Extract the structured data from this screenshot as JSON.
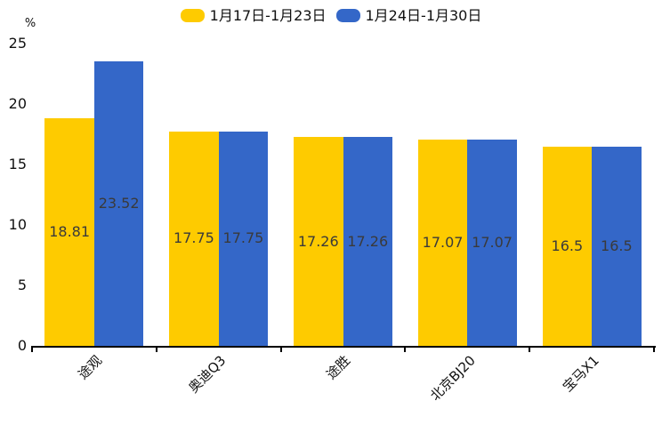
{
  "chart_data": {
    "type": "bar",
    "title": "",
    "unit": "%",
    "categories": [
      "途观",
      "奥迪Q3",
      "途胜",
      "北京BJ20",
      "宝马X1"
    ],
    "series": [
      {
        "name": "1月17日-1月23日",
        "color": "#FECB00",
        "values": [
          18.81,
          17.75,
          17.26,
          17.07,
          16.5
        ]
      },
      {
        "name": "1月24日-1月30日",
        "color": "#3467C8",
        "values": [
          23.52,
          17.75,
          17.26,
          17.07,
          16.5
        ]
      }
    ],
    "value_labels": [
      [
        "18.81",
        "17.75",
        "17.26",
        "17.07",
        "16.5"
      ],
      [
        "23.52",
        "17.75",
        "17.26",
        "17.07",
        "16.5"
      ]
    ],
    "yticks": [
      0,
      5,
      10,
      15,
      20,
      25
    ],
    "ylim": [
      0,
      25
    ],
    "ylabel": "%",
    "xlabel": "",
    "legend_position": "top",
    "grid": false,
    "x_label_rotation_deg": 45,
    "axis_color": "#000000",
    "value_label_color": "#3a3a3a"
  }
}
